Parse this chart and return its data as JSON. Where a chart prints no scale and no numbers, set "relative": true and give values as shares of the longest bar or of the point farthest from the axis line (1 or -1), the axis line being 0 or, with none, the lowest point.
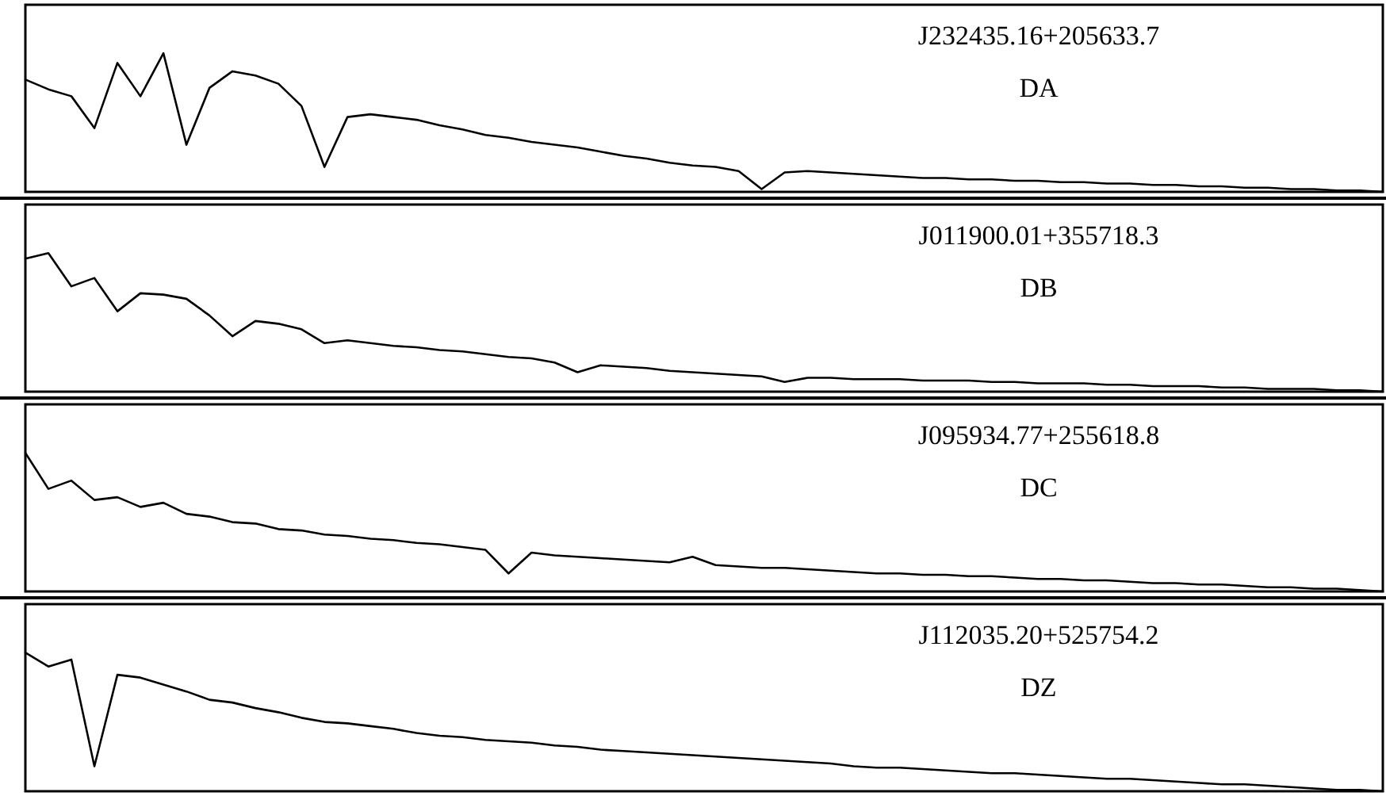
{
  "chart_data": [
    {
      "type": "line",
      "relative": true,
      "annotations": [
        "J232435.16+205633.7",
        "DA"
      ],
      "categories": [
        null,
        null,
        null,
        null,
        null,
        null,
        null,
        null,
        null,
        null,
        null,
        null,
        null,
        null,
        null,
        null,
        null,
        null,
        null,
        null,
        null,
        null,
        null,
        null,
        null,
        null,
        null,
        null,
        null,
        null,
        null,
        null,
        null,
        null,
        null,
        null,
        null,
        null,
        null,
        null,
        null,
        null,
        null,
        null,
        null,
        null,
        null,
        null,
        null,
        null,
        null,
        null,
        null,
        null,
        null,
        null,
        null,
        null,
        null,
        null
      ],
      "series": [
        {
          "color": "#000000",
          "values": [
            0.81,
            0.74,
            0.69,
            0.46,
            0.93,
            0.69,
            1,
            0.34,
            0.75,
            0.87,
            0.84,
            0.78,
            0.62,
            0.18,
            0.54,
            0.56,
            0.54,
            0.52,
            0.48,
            0.45,
            0.41,
            0.39,
            0.36,
            0.34,
            0.32,
            0.29,
            0.26,
            0.24,
            0.21,
            0.19,
            0.18,
            0.15,
            0.02,
            0.14,
            0.15,
            0.14,
            0.13,
            0.12,
            0.11,
            0.1,
            0.1,
            0.09,
            0.09,
            0.08,
            0.08,
            0.07,
            0.07,
            0.06,
            0.06,
            0.05,
            0.05,
            0.04,
            0.04,
            0.03,
            0.03,
            0.02,
            0.02,
            0.01,
            0.01,
            0.0
          ]
        }
      ]
    },
    {
      "type": "line",
      "relative": true,
      "annotations": [
        "J011900.01+355718.3",
        "DB"
      ],
      "categories": [
        null,
        null,
        null,
        null,
        null,
        null,
        null,
        null,
        null,
        null,
        null,
        null,
        null,
        null,
        null,
        null,
        null,
        null,
        null,
        null,
        null,
        null,
        null,
        null,
        null,
        null,
        null,
        null,
        null,
        null,
        null,
        null,
        null,
        null,
        null,
        null,
        null,
        null,
        null,
        null,
        null,
        null,
        null,
        null,
        null,
        null,
        null,
        null,
        null,
        null,
        null,
        null,
        null,
        null,
        null,
        null,
        null,
        null,
        null,
        null
      ],
      "series": [
        {
          "color": "#000000",
          "values": [
            0.96,
            1.0,
            0.76,
            0.82,
            0.58,
            0.71,
            0.7,
            0.67,
            0.55,
            0.4,
            0.51,
            0.49,
            0.45,
            0.35,
            0.37,
            0.35,
            0.33,
            0.32,
            0.3,
            0.29,
            0.27,
            0.25,
            0.24,
            0.21,
            0.14,
            0.19,
            0.18,
            0.17,
            0.15,
            0.14,
            0.13,
            0.12,
            0.11,
            0.07,
            0.1,
            0.1,
            0.09,
            0.09,
            0.09,
            0.08,
            0.08,
            0.08,
            0.07,
            0.07,
            0.06,
            0.06,
            0.06,
            0.05,
            0.05,
            0.04,
            0.04,
            0.04,
            0.03,
            0.03,
            0.02,
            0.02,
            0.02,
            0.01,
            0.01,
            0.0
          ]
        }
      ]
    },
    {
      "type": "line",
      "relative": true,
      "annotations": [
        "J095934.77+255618.8",
        "DC"
      ],
      "categories": [
        null,
        null,
        null,
        null,
        null,
        null,
        null,
        null,
        null,
        null,
        null,
        null,
        null,
        null,
        null,
        null,
        null,
        null,
        null,
        null,
        null,
        null,
        null,
        null,
        null,
        null,
        null,
        null,
        null,
        null,
        null,
        null,
        null,
        null,
        null,
        null,
        null,
        null,
        null,
        null,
        null,
        null,
        null,
        null,
        null,
        null,
        null,
        null,
        null,
        null,
        null,
        null,
        null,
        null,
        null,
        null,
        null,
        null,
        null,
        null
      ],
      "series": [
        {
          "color": "#000000",
          "values": [
            1.0,
            0.74,
            0.8,
            0.66,
            0.68,
            0.61,
            0.64,
            0.56,
            0.54,
            0.5,
            0.49,
            0.45,
            0.44,
            0.41,
            0.4,
            0.38,
            0.37,
            0.35,
            0.34,
            0.32,
            0.3,
            0.13,
            0.28,
            0.26,
            0.25,
            0.24,
            0.23,
            0.22,
            0.21,
            0.25,
            0.19,
            0.18,
            0.17,
            0.17,
            0.16,
            0.15,
            0.14,
            0.13,
            0.13,
            0.12,
            0.12,
            0.11,
            0.11,
            0.1,
            0.09,
            0.09,
            0.08,
            0.08,
            0.07,
            0.06,
            0.06,
            0.05,
            0.05,
            0.04,
            0.03,
            0.03,
            0.02,
            0.02,
            0.01,
            0.0
          ]
        }
      ]
    },
    {
      "type": "line",
      "relative": true,
      "annotations": [
        "J112035.20+525754.2",
        "DZ"
      ],
      "categories": [
        null,
        null,
        null,
        null,
        null,
        null,
        null,
        null,
        null,
        null,
        null,
        null,
        null,
        null,
        null,
        null,
        null,
        null,
        null,
        null,
        null,
        null,
        null,
        null,
        null,
        null,
        null,
        null,
        null,
        null,
        null,
        null,
        null,
        null,
        null,
        null,
        null,
        null,
        null,
        null,
        null,
        null,
        null,
        null,
        null,
        null,
        null,
        null,
        null,
        null,
        null,
        null,
        null,
        null,
        null,
        null,
        null,
        null,
        null,
        null
      ],
      "series": [
        {
          "color": "#000000",
          "values": [
            1.0,
            0.9,
            0.95,
            0.18,
            0.84,
            0.82,
            0.77,
            0.72,
            0.66,
            0.64,
            0.6,
            0.57,
            0.53,
            0.5,
            0.49,
            0.47,
            0.45,
            0.42,
            0.4,
            0.39,
            0.37,
            0.36,
            0.35,
            0.33,
            0.32,
            0.3,
            0.29,
            0.28,
            0.27,
            0.26,
            0.25,
            0.24,
            0.23,
            0.22,
            0.21,
            0.2,
            0.18,
            0.17,
            0.17,
            0.16,
            0.15,
            0.14,
            0.13,
            0.13,
            0.12,
            0.11,
            0.1,
            0.09,
            0.09,
            0.08,
            0.07,
            0.06,
            0.05,
            0.05,
            0.04,
            0.03,
            0.02,
            0.01,
            0.01,
            0.0
          ]
        }
      ]
    }
  ]
}
